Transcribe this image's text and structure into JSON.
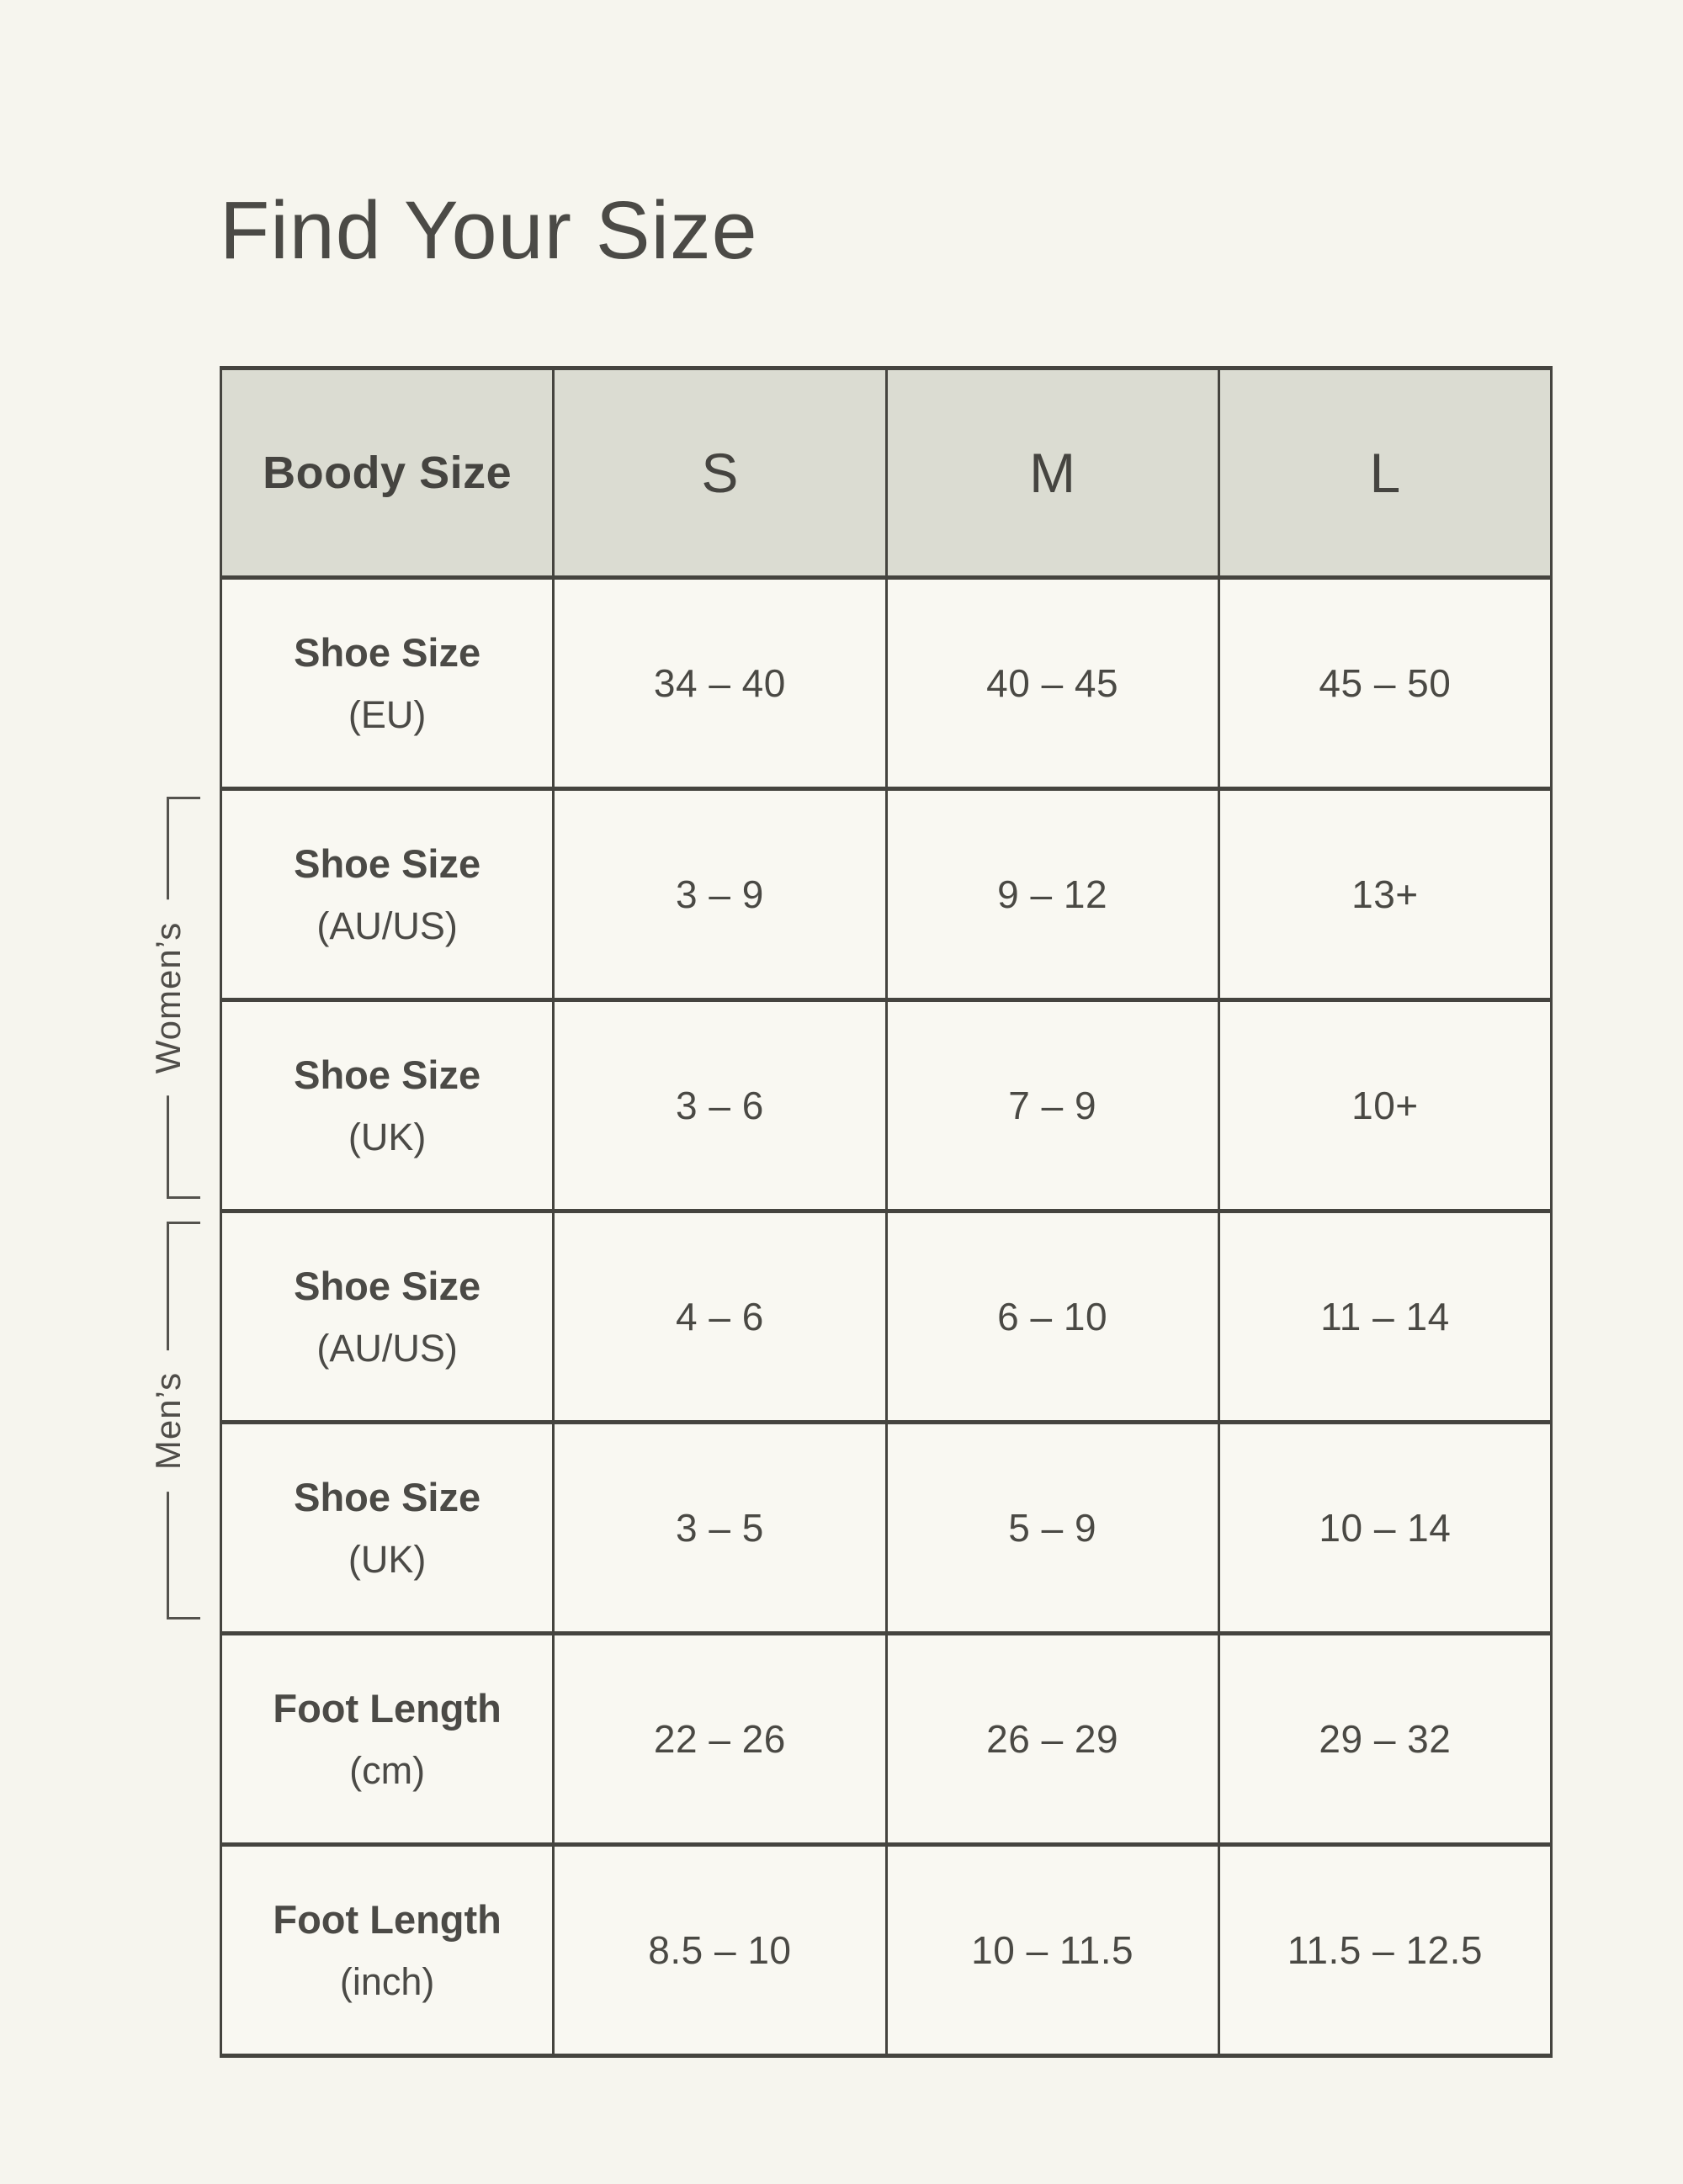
{
  "title": "Find Your Size",
  "colors": {
    "page_background": "#f6f5ee",
    "header_background": "#dbdcd2",
    "cell_background": "#f9f8f2",
    "border": "#45443f",
    "text": "#4a4944",
    "bracket_line": "#54524d"
  },
  "side_labels": {
    "womens": "Women’s",
    "mens": "Men’s"
  },
  "table": {
    "header": [
      "Boody Size",
      "S",
      "M",
      "L"
    ],
    "rows": [
      {
        "label": "Shoe Size",
        "sub": "(EU)",
        "values": [
          "34 – 40",
          "40 – 45",
          "45 – 50"
        ]
      },
      {
        "label": "Shoe Size",
        "sub": "(AU/US)",
        "values": [
          "3 – 9",
          "9 – 12",
          "13+"
        ]
      },
      {
        "label": "Shoe Size",
        "sub": "(UK)",
        "values": [
          "3 – 6",
          "7 – 9",
          "10+"
        ]
      },
      {
        "label": "Shoe Size",
        "sub": "(AU/US)",
        "values": [
          "4 – 6",
          "6 – 10",
          "11 – 14"
        ]
      },
      {
        "label": "Shoe Size",
        "sub": "(UK)",
        "values": [
          "3 – 5",
          "5 – 9",
          "10 – 14"
        ]
      },
      {
        "label": "Foot Length",
        "sub": "(cm)",
        "values": [
          "22 – 26",
          "26 – 29",
          "29 – 32"
        ]
      },
      {
        "label": "Foot Length",
        "sub": "(inch)",
        "values": [
          "8.5 – 10",
          "10 – 11.5",
          "11.5 – 12.5"
        ]
      }
    ]
  },
  "chart_data": {
    "type": "table",
    "title": "Find Your Size",
    "columns": [
      "Boody Size",
      "S",
      "M",
      "L"
    ],
    "rows": [
      [
        "Shoe Size (EU)",
        "34 – 40",
        "40 – 45",
        "45 – 50"
      ],
      [
        "Shoe Size (AU/US)",
        "3 – 9",
        "9 – 12",
        "13+"
      ],
      [
        "Shoe Size (UK)",
        "3 – 6",
        "7 – 9",
        "10+"
      ],
      [
        "Shoe Size (AU/US)",
        "4 – 6",
        "6 – 10",
        "11 – 14"
      ],
      [
        "Shoe Size (UK)",
        "3 – 5",
        "5 – 9",
        "10 – 14"
      ],
      [
        "Foot Length (cm)",
        "22 – 26",
        "26 – 29",
        "29 – 32"
      ],
      [
        "Foot Length (inch)",
        "8.5 – 10",
        "10 – 11.5",
        "11.5 – 12.5"
      ]
    ],
    "row_groups": [
      {
        "label": "Women’s",
        "row_indices": [
          1,
          2
        ]
      },
      {
        "label": "Men’s",
        "row_indices": [
          3,
          4
        ]
      }
    ],
    "legend_position": "left-brackets",
    "grid": true
  }
}
